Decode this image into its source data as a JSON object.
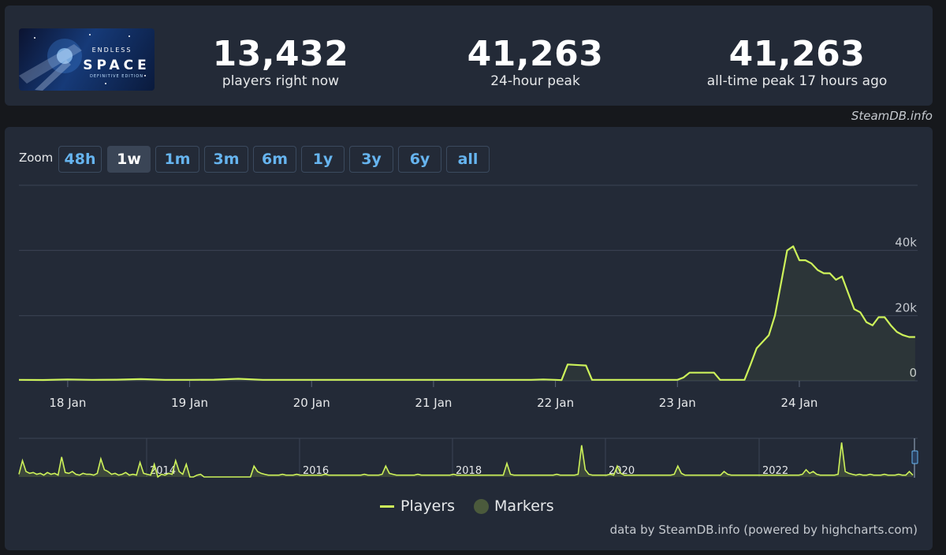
{
  "stats": [
    {
      "value": "13,432",
      "label": "players right now"
    },
    {
      "value": "41,263",
      "label": "24-hour peak"
    },
    {
      "value": "41,263",
      "label": "all-time peak 17 hours ago"
    }
  ],
  "game_logo": {
    "title": "ENDLESS",
    "subtitle": "SPACE",
    "edition": "DEFINITIVE EDITION"
  },
  "attribution_top": "SteamDB.info",
  "zoom": {
    "label": "Zoom",
    "buttons": [
      "48h",
      "1w",
      "1m",
      "3m",
      "6m",
      "1y",
      "3y",
      "6y",
      "all"
    ],
    "active": "1w"
  },
  "legend": {
    "players": "Players",
    "markers": "Markers"
  },
  "credits": "data by SteamDB.info (powered by highcharts.com)",
  "colors": {
    "series": "#cdf25a",
    "marker": "#4b5a3c",
    "accent": "#66b4ef",
    "background": "#232a37"
  },
  "chart_data": {
    "type": "area",
    "series": [
      {
        "name": "Players",
        "x": [
          17.6,
          17.8,
          18.0,
          18.2,
          18.4,
          18.6,
          18.8,
          19.0,
          19.2,
          19.4,
          19.6,
          19.8,
          20.0,
          20.5,
          21.0,
          21.5,
          21.8,
          21.9,
          22.0,
          22.05,
          22.1,
          22.2,
          22.25,
          22.3,
          22.35,
          22.5,
          22.8,
          23.0,
          23.05,
          23.1,
          23.2,
          23.3,
          23.35,
          23.5,
          23.55,
          23.6,
          23.65,
          23.75,
          23.8,
          23.85,
          23.9,
          23.95,
          24.0,
          24.05,
          24.1,
          24.15,
          24.2,
          24.25,
          24.3,
          24.35,
          24.4,
          24.45,
          24.5,
          24.55,
          24.6,
          24.65,
          24.7,
          24.75,
          24.8,
          24.85,
          24.9,
          24.95
        ],
        "values": [
          300,
          250,
          400,
          300,
          350,
          500,
          300,
          300,
          350,
          600,
          300,
          300,
          300,
          300,
          300,
          300,
          300,
          400,
          300,
          200,
          5000,
          4800,
          4700,
          300,
          300,
          300,
          300,
          300,
          1000,
          2500,
          2500,
          2500,
          300,
          300,
          300,
          5000,
          10000,
          14000,
          20000,
          30000,
          40000,
          41263,
          37000,
          37000,
          36000,
          34000,
          33000,
          33000,
          31000,
          32000,
          27000,
          22000,
          21000,
          18000,
          17000,
          19500,
          19500,
          17000,
          15000,
          14000,
          13432,
          13432
        ]
      }
    ],
    "x_ticks": [
      "18 Jan",
      "19 Jan",
      "20 Jan",
      "21 Jan",
      "22 Jan",
      "23 Jan",
      "24 Jan"
    ],
    "y_ticks": [
      "0",
      "20k",
      "40k"
    ],
    "ylim": [
      0,
      60000
    ],
    "grid": true,
    "legend": "bottom-center",
    "navigator": {
      "year_labels": [
        "2014",
        "2016",
        "2018",
        "2020",
        "2022"
      ],
      "values": [
        3,
        18,
        6,
        4,
        5,
        3,
        4,
        2,
        5,
        3,
        4,
        2,
        22,
        5,
        4,
        6,
        3,
        2,
        4,
        3,
        3,
        2,
        4,
        20,
        8,
        6,
        3,
        4,
        2,
        3,
        5,
        2,
        3,
        2,
        16,
        4,
        3,
        2,
        14,
        0,
        3,
        2,
        4,
        3,
        18,
        6,
        3,
        14,
        0,
        0,
        2,
        3,
        0,
        0,
        0,
        0,
        0,
        0,
        0,
        0,
        0,
        0,
        0,
        0,
        0,
        0,
        12,
        6,
        4,
        3,
        2,
        2,
        2,
        2,
        3,
        2,
        2,
        2,
        3,
        2,
        2,
        2,
        2,
        2,
        2,
        2,
        3,
        2,
        2,
        2,
        2,
        2,
        2,
        2,
        2,
        2,
        2,
        3,
        2,
        2,
        2,
        2,
        3,
        12,
        4,
        3,
        2,
        2,
        2,
        2,
        2,
        2,
        3,
        2,
        2,
        2,
        2,
        2,
        2,
        2,
        2,
        2,
        3,
        2,
        2,
        2,
        2,
        2,
        2,
        2,
        2,
        2,
        2,
        2,
        2,
        2,
        2,
        15,
        3,
        2,
        2,
        2,
        2,
        2,
        2,
        2,
        2,
        2,
        2,
        2,
        2,
        3,
        2,
        2,
        2,
        2,
        2,
        3,
        35,
        8,
        3,
        2,
        2,
        2,
        2,
        2,
        3,
        2,
        12,
        4,
        2,
        2,
        2,
        2,
        2,
        2,
        2,
        2,
        2,
        2,
        2,
        2,
        2,
        2,
        3,
        12,
        4,
        2,
        2,
        2,
        2,
        2,
        2,
        2,
        2,
        2,
        2,
        2,
        6,
        3,
        2,
        2,
        2,
        2,
        2,
        2,
        2,
        2,
        2,
        2,
        2,
        2,
        2,
        2,
        2,
        2,
        2,
        2,
        2,
        2,
        3,
        8,
        4,
        6,
        3,
        2,
        2,
        2,
        2,
        2,
        3,
        38,
        6,
        4,
        3,
        2,
        3,
        2,
        2,
        3,
        2,
        2,
        2,
        3,
        2,
        2,
        2,
        3,
        2,
        2,
        6,
        2
      ]
    }
  }
}
